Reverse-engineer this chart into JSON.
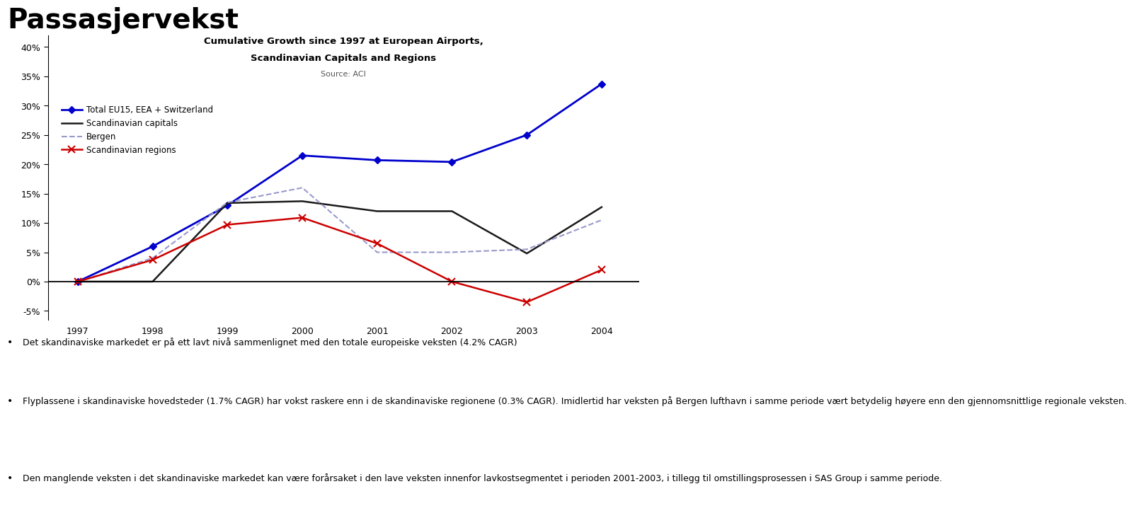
{
  "title_main": "Passasjervekst",
  "chart_title_line1": "Cumulative Growth since 1997 at European Airports,",
  "chart_title_line2": "Scandinavian Capitals and Regions",
  "chart_source": "Source: ACI",
  "years": [
    1997,
    1998,
    1999,
    2000,
    2001,
    2002,
    2003,
    2004
  ],
  "series": {
    "Total EU15, EEA + Switzerland": {
      "values": [
        0.0,
        0.06,
        0.13,
        0.215,
        0.207,
        0.204,
        0.25,
        0.337
      ],
      "color": "#0000CC",
      "linestyle": "solid",
      "marker": "D",
      "linewidth": 2.0,
      "markersize": 5
    },
    "Scandinavian capitals": {
      "values": [
        0.0,
        0.0,
        0.134,
        0.137,
        0.12,
        0.12,
        0.048,
        0.127
      ],
      "color": "#1a1a1a",
      "linestyle": "solid",
      "marker": null,
      "linewidth": 1.8,
      "markersize": 0
    },
    "Bergen": {
      "values": [
        0.0,
        0.04,
        0.135,
        0.16,
        0.05,
        0.05,
        0.055,
        0.105
      ],
      "color": "#9999CC",
      "linestyle": "dashed",
      "marker": null,
      "linewidth": 1.5,
      "markersize": 0
    },
    "Scandinavian regions": {
      "values": [
        0.0,
        0.037,
        0.097,
        0.109,
        0.065,
        0.0,
        -0.035,
        0.02
      ],
      "color": "#CC0000",
      "linestyle": "solid",
      "marker": "x",
      "linewidth": 1.8,
      "markersize": 7,
      "markeredgewidth": 1.5
    }
  },
  "ylim": [
    -0.065,
    0.42
  ],
  "yticks": [
    -0.05,
    0.0,
    0.05,
    0.1,
    0.15,
    0.2,
    0.25,
    0.3,
    0.35,
    0.4
  ],
  "ytick_labels": [
    "-5%",
    "0%",
    "5%",
    "10%",
    "15%",
    "20%",
    "25%",
    "30%",
    "35%",
    "40%"
  ],
  "background_color": "#FFFFFF",
  "bullet_points": [
    "Det skandinaviske markedet er på ett lavt nivå sammenlignet med den totale europeiske veksten (4.2% CAGR)",
    "Flyplassene i skandinaviske hovedsteder (1.7% CAGR) har vokst raskere enn i de skandinaviske regionene (0.3% CAGR). Imidlertid har veksten på Bergen lufthavn i samme periode vært betydelig høyere enn den gjennomsnittlige regionale veksten.",
    "Den manglende veksten i det skandinaviske markedet kan være forårsaket i den lave veksten innenfor lavkostsegmentet i perioden 2001-2003, i tillegg til omstillingsprosessen i SAS Group i samme periode."
  ]
}
